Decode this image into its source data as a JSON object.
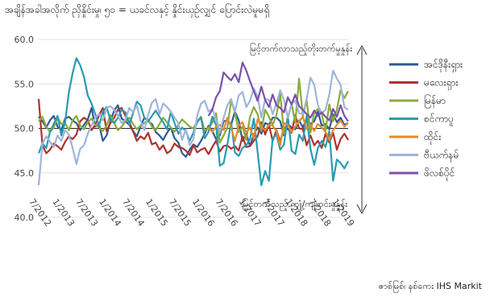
{
  "title": "အချိန်အခါအလိုက် ညှိနှိုင်းမှု၊ ၅၀ = ယခင်လနှင့် နှိုင်းယှဉ်လျှင် ပြောင်းလဲမှုမရှိ",
  "source": "ဇာစ်မြစ်၊ နစ်ကေး IHS Markit",
  "chart_data": {
    "type": "line",
    "ylim": [
      40,
      60
    ],
    "yticks": [
      "40.0",
      "45.0",
      "50.0",
      "55.0",
      "60.0"
    ],
    "reference_line": 50,
    "x_tick_labels": [
      "7/2012",
      "1/2013",
      "7/2013",
      "1/2014",
      "7/2014",
      "1/2015",
      "7/2015",
      "1/2016",
      "7/2016",
      "1/2017",
      "7/2017",
      "1/2018",
      "7/2018",
      "1/2019"
    ],
    "x_range": [
      "2012-07",
      "2019-05"
    ],
    "annotation_top": "မြင့်တက်လာသည့်တိုးတက်မှုနှုန်း",
    "annotation_bottom": "မြင့်တက်သည့် ကျုံ့/ကျဆင်းမှုနှုန်း",
    "legend_position": "right",
    "series": [
      {
        "name": "အင်ဒိုနီးရှား",
        "color": "#2e5a94",
        "values": [
          51.3,
          50.8,
          50.1,
          50.9,
          51.4,
          50.2,
          49.8,
          51.1,
          51.3,
          50.9,
          50.6,
          49.8,
          50.4,
          51.0,
          52.3,
          50.2,
          50.5,
          48.6,
          49.2,
          50.8,
          52.0,
          52.6,
          51.1,
          50.8,
          50.4,
          49.7,
          49.1,
          50.2,
          51.2,
          50.8,
          50.5,
          49.6,
          49.2,
          48.7,
          49.5,
          50.1,
          48.9,
          48.4,
          47.2,
          46.8,
          47.6,
          48.2,
          47.9,
          48.6,
          49.4,
          50.3,
          49.7,
          48.8,
          49.2,
          50.8,
          50.9,
          50.4,
          51.9,
          50.9,
          48.6,
          49.4,
          48.0,
          49.3,
          50.1,
          49.4,
          50.6,
          50.4,
          51.2,
          51.2,
          50.8,
          49.2,
          50.5,
          50.1,
          49.9,
          50.9,
          50.1,
          51.1,
          50.5,
          50.8,
          51.9,
          50.3,
          50.5,
          49.9,
          51.6,
          50.7,
          51.2,
          50.4,
          50.6
        ]
      },
      {
        "name": "မလေးရှား",
        "color": "#b0312c",
        "values": [
          53.3,
          48.1,
          47.2,
          47.6,
          48.3,
          48.0,
          47.6,
          48.5,
          49.1,
          48.8,
          49.3,
          50.8,
          51.2,
          50.9,
          49.8,
          50.4,
          51.5,
          52.3,
          49.7,
          50.6,
          51.2,
          52.1,
          52.3,
          51.4,
          50.7,
          49.7,
          48.6,
          49.1,
          48.8,
          49.5,
          48.2,
          48.4,
          47.6,
          48.1,
          47.2,
          47.5,
          48.3,
          47.9,
          47.8,
          47.5,
          47.0,
          48.1,
          47.3,
          47.6,
          47.8,
          47.1,
          47.9,
          48.6,
          47.4,
          48.0,
          48.1,
          47.7,
          48.0,
          47.5,
          49.1,
          47.9,
          48.0,
          48.6,
          49.1,
          50.7,
          49.3,
          50.4,
          48.6,
          49.8,
          48.5,
          50.1,
          49.9,
          49.5,
          51.5,
          50.0,
          49.9,
          48.1,
          49.2,
          48.1,
          48.6,
          47.8,
          49.4,
          48.4,
          49.5,
          47.6,
          48.8,
          49.4,
          48.7
        ]
      },
      {
        "name": "မြန်မာ",
        "color": "#8aab3c",
        "values": [
          50.8,
          51.3,
          50.2,
          49.6,
          50.1,
          51.2,
          50.5,
          50.6,
          49.8,
          50.9,
          51.4,
          50.3,
          49.9,
          50.7,
          51.1,
          50.4,
          50.1,
          49.7,
          50.3,
          51.5,
          50.6,
          49.8,
          50.2,
          50.8,
          51.2,
          50.5,
          49.9,
          50.3,
          50.6,
          51.0,
          50.2,
          49.8,
          50.5,
          51.2,
          50.7,
          50.1,
          49.6,
          50.4,
          51.0,
          50.6,
          50.2,
          50.0,
          50.8,
          51.3,
          49.7,
          50.1,
          50.6,
          51.7,
          48.4,
          49.2,
          50.1,
          53.1,
          51.8,
          49.6,
          50.2,
          48.7,
          51.3,
          52.4,
          51.6,
          49.7,
          52.1,
          51.3,
          50.4,
          51.5,
          53.9,
          49.4,
          51.1,
          52.8,
          50.6,
          55.6,
          51.4,
          53.2,
          49.5,
          51.8,
          52.2,
          51.6,
          49.7,
          52.7,
          50.8,
          52.1,
          54.3,
          53.4,
          54.2
        ]
      },
      {
        "name": "စင်ကာပူ",
        "color": "#2a9bb0",
        "values": [
          47.2,
          48.3,
          47.8,
          49.6,
          50.5,
          51.4,
          49.2,
          50.7,
          54.1,
          56.2,
          57.9,
          57.1,
          55.8,
          53.7,
          52.8,
          51.6,
          50.3,
          51.9,
          52.4,
          50.9,
          50.6,
          51.2,
          52.1,
          51.8,
          50.4,
          51.7,
          53.0,
          52.6,
          51.2,
          50.8,
          51.4,
          52.0,
          51.3,
          50.7,
          49.9,
          51.8,
          50.6,
          49.4,
          50.1,
          49.7,
          48.6,
          49.5,
          50.7,
          51.2,
          48.9,
          49.6,
          51.3,
          50.4,
          45.8,
          46.1,
          48.2,
          50.7,
          47.3,
          46.9,
          47.8,
          48.1,
          48.8,
          51.1,
          47.4,
          43.6,
          45.2,
          44.1,
          48.9,
          49.3,
          47.6,
          48.2,
          51.4,
          47.5,
          47.1,
          49.3,
          48.6,
          51.4,
          47.7,
          45.9,
          47.8,
          48.6,
          47.9,
          49.7,
          44.1,
          46.5,
          46.1,
          45.5,
          46.3
        ]
      },
      {
        "name": "ထိုင်း",
        "color": "#e68a2e",
        "values": [
          null,
          null,
          null,
          null,
          null,
          null,
          null,
          null,
          null,
          null,
          null,
          null,
          null,
          null,
          null,
          null,
          null,
          null,
          null,
          null,
          null,
          null,
          null,
          null,
          null,
          null,
          null,
          null,
          null,
          null,
          null,
          null,
          null,
          null,
          null,
          null,
          null,
          null,
          null,
          null,
          null,
          null,
          null,
          null,
          null,
          50.1,
          49.6,
          50.2,
          50.4,
          49.8,
          51.2,
          50.1,
          48.6,
          50.3,
          50.7,
          49.5,
          50.1,
          48.9,
          51.0,
          50.2,
          49.8,
          50.4,
          50.3,
          49.7,
          48.1,
          50.6,
          50.4,
          49.6,
          50.2,
          50.8,
          51.3,
          49.9,
          50.4,
          49.7,
          50.5,
          50.1,
          49.6,
          48.7,
          49.8,
          50.4,
          50.9,
          50.2,
          50.6
        ]
      },
      {
        "name": "ဗီယက်နမ်",
        "color": "#9eb5dc",
        "values": [
          43.6,
          48.3,
          49.1,
          48.5,
          47.9,
          49.2,
          48.6,
          49.8,
          49.3,
          47.8,
          46.0,
          47.7,
          48.1,
          49.4,
          50.3,
          51.2,
          51.6,
          50.9,
          52.3,
          52.5,
          52.1,
          51.4,
          50.6,
          51.0,
          52.3,
          51.8,
          52.6,
          50.9,
          49.8,
          51.5,
          52.9,
          53.3,
          51.6,
          52.8,
          52.4,
          51.9,
          51.2,
          50.6,
          48.7,
          49.9,
          48.1,
          48.8,
          51.4,
          52.8,
          53.1,
          51.9,
          52.2,
          51.0,
          49.5,
          51.2,
          52.6,
          53.3,
          51.9,
          53.7,
          54.1,
          52.4,
          53.1,
          54.5,
          53.6,
          51.2,
          53.3,
          53.2,
          51.6,
          52.8,
          54.3,
          53.2,
          51.2,
          52.8,
          53.1,
          51.7,
          51.6,
          53.3,
          55.7,
          54.9,
          52.6,
          51.7,
          52.1,
          53.8,
          56.5,
          55.6,
          54.9,
          52.4,
          52.1
        ]
      },
      {
        "name": "ဖိလစ်ပိုင်",
        "color": "#7a52a8",
        "values": [
          null,
          null,
          null,
          null,
          null,
          null,
          null,
          null,
          null,
          null,
          null,
          null,
          null,
          null,
          null,
          null,
          null,
          null,
          null,
          null,
          null,
          null,
          null,
          null,
          null,
          null,
          null,
          null,
          null,
          null,
          null,
          null,
          null,
          null,
          null,
          null,
          null,
          null,
          null,
          null,
          null,
          null,
          null,
          null,
          null,
          51.4,
          52.1,
          53.5,
          54.2,
          56.3,
          55.8,
          55.4,
          56.1,
          55.2,
          57.4,
          56.5,
          55.3,
          54.2,
          53.1,
          54.7,
          53.2,
          52.4,
          53.8,
          52.6,
          52.3,
          51.8,
          53.5,
          52.7,
          53.8,
          52.5,
          52.1,
          51.6,
          51.2,
          52.0,
          51.4,
          51.8,
          51.3,
          50.9,
          52.2,
          51.3,
          52.6,
          51.4,
          50.8
        ]
      }
    ]
  }
}
